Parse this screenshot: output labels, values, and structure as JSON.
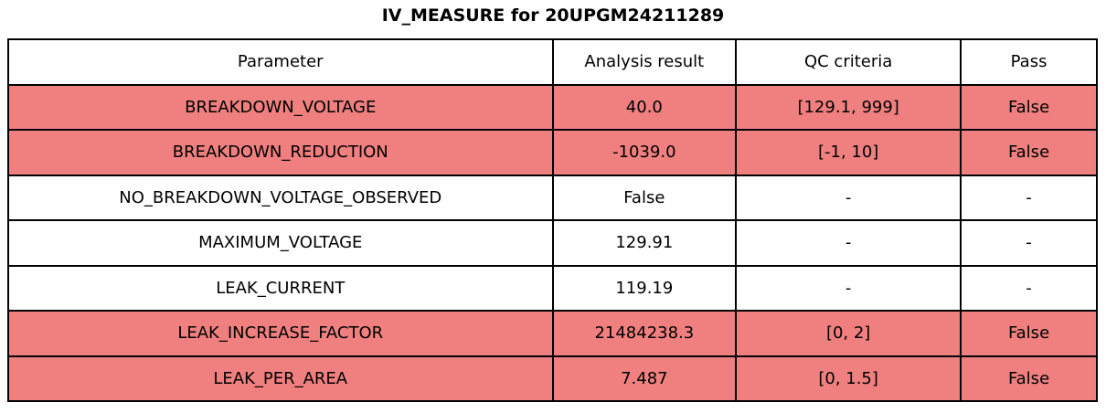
{
  "title": "IV_MEASURE for 20UPGM24211289",
  "table": {
    "headers": [
      "Parameter",
      "Analysis result",
      "QC criteria",
      "Pass"
    ],
    "rows": [
      {
        "parameter": "BREAKDOWN_VOLTAGE",
        "analysis_result": "40.0",
        "qc_criteria": "[129.1, 999]",
        "pass": "False",
        "highlighted": true
      },
      {
        "parameter": "BREAKDOWN_REDUCTION",
        "analysis_result": "-1039.0",
        "qc_criteria": "[-1, 10]",
        "pass": "False",
        "highlighted": true
      },
      {
        "parameter": "NO_BREAKDOWN_VOLTAGE_OBSERVED",
        "analysis_result": "False",
        "qc_criteria": "-",
        "pass": "-",
        "highlighted": false
      },
      {
        "parameter": "MAXIMUM_VOLTAGE",
        "analysis_result": "129.91",
        "qc_criteria": "-",
        "pass": "-",
        "highlighted": false
      },
      {
        "parameter": "LEAK_CURRENT",
        "analysis_result": "119.19",
        "qc_criteria": "-",
        "pass": "-",
        "highlighted": false
      },
      {
        "parameter": "LEAK_INCREASE_FACTOR",
        "analysis_result": "21484238.3",
        "qc_criteria": "[0, 2]",
        "pass": "False",
        "highlighted": true
      },
      {
        "parameter": "LEAK_PER_AREA",
        "analysis_result": "7.487",
        "qc_criteria": "[0, 1.5]",
        "pass": "False",
        "highlighted": true
      }
    ],
    "colors": {
      "fail_row_background": "#f08080",
      "normal_row_background": "#ffffff",
      "border": "#000000",
      "text": "#000000"
    }
  },
  "chart_data": {
    "type": "table",
    "title": "IV_MEASURE for 20UPGM24211289",
    "columns": [
      "Parameter",
      "Analysis result",
      "QC criteria",
      "Pass"
    ],
    "rows": [
      [
        "BREAKDOWN_VOLTAGE",
        "40.0",
        "[129.1, 999]",
        "False"
      ],
      [
        "BREAKDOWN_REDUCTION",
        "-1039.0",
        "[-1, 10]",
        "False"
      ],
      [
        "NO_BREAKDOWN_VOLTAGE_OBSERVED",
        "False",
        "-",
        "-"
      ],
      [
        "MAXIMUM_VOLTAGE",
        "129.91",
        "-",
        "-"
      ],
      [
        "LEAK_CURRENT",
        "119.19",
        "-",
        "-"
      ],
      [
        "LEAK_INCREASE_FACTOR",
        "21484238.3",
        "[0, 2]",
        "False"
      ],
      [
        "LEAK_PER_AREA",
        "7.487",
        "[0, 1.5]",
        "False"
      ]
    ],
    "highlighted_rows": [
      0,
      1,
      5,
      6
    ],
    "row_highlight_color": "#f08080",
    "layout": "title centered above full-width bordered table, all cells center-aligned"
  }
}
